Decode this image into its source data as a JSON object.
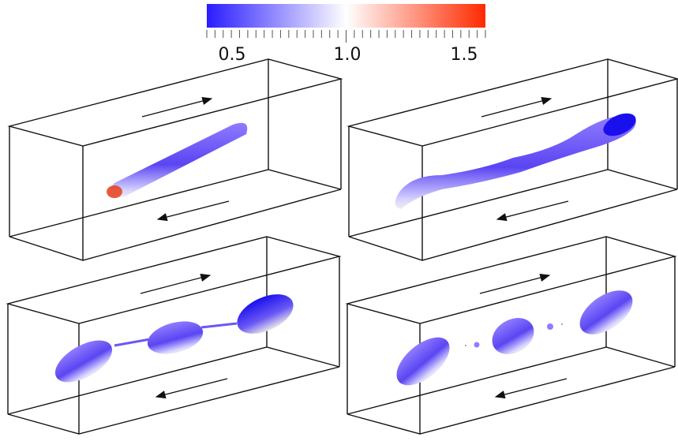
{
  "colorbar": {
    "labels": [
      "0.5",
      "1.0",
      "1.5"
    ]
  }
}
